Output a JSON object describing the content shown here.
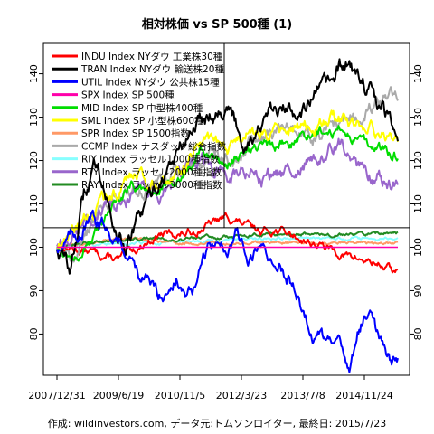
{
  "chart_data": {
    "type": "line",
    "title": "相対株価 vs SP 500種 (1)",
    "source_note": "作成: wildinvestors.com, データ元:トムソンロイター, 最終日: 2015/7/23",
    "x_tick_labels": [
      "2007/12/31",
      "2009/6/19",
      "2010/11/5",
      "2012/3/23",
      "2013/7/8",
      "2014/11/24"
    ],
    "y_ticks": [
      80,
      90,
      100,
      110,
      120,
      130,
      140
    ],
    "ylim": [
      70.5,
      147
    ],
    "grid": false,
    "legend_position": "top-left",
    "reference_lines": [
      {
        "orientation": "horizontal",
        "value": 104.5,
        "color": "#000000"
      },
      {
        "orientation": "vertical",
        "x_label_between": [
          "2010/11/5",
          "2012/3/23"
        ],
        "color": "#000000"
      }
    ],
    "series": [
      {
        "name": "INDU Index NYダウ 工業株30種",
        "color": "#ff0000",
        "key_values": {
          "start": 100,
          "mid": 103,
          "peak": 107,
          "end": 94
        }
      },
      {
        "name": "TRAN Index NYダウ 輸送株20種",
        "color": "#000000",
        "key_values": {
          "start": 100,
          "low": 95,
          "peak": 143,
          "end": 127
        }
      },
      {
        "name": "UTIL Index NYダウ 公共株15種",
        "color": "#0000ff",
        "key_values": {
          "start": 100,
          "low_2010": 88,
          "peak_2012": 105,
          "low": 73,
          "end": 75
        }
      },
      {
        "name": "SPX Index SP 500種",
        "color": "#ff00aa",
        "key_values": {
          "start": 100,
          "end": 100
        }
      },
      {
        "name": "MID Index SP 中型株400種",
        "color": "#00dd00",
        "key_values": {
          "start": 100,
          "peak": 128,
          "end": 121
        }
      },
      {
        "name": "SML Index SP 小型株600種",
        "color": "#ffff00",
        "key_values": {
          "start": 100,
          "peak": 130,
          "end": 123
        }
      },
      {
        "name": "SPR Index SP 1500指数",
        "color": "#ff9966",
        "key_values": {
          "start": 100,
          "end": 101
        }
      },
      {
        "name": "CCMP Index ナスダック総合指数",
        "color": "#aaaaaa",
        "key_values": {
          "start": 100,
          "peak": 136,
          "end": 135
        }
      },
      {
        "name": "RIY Index ラッセル1000種指数",
        "color": "#88ffff",
        "key_values": {
          "start": 100,
          "end": 102
        }
      },
      {
        "name": "RTY Index ラッセル2000種指数",
        "color": "#9966cc",
        "key_values": {
          "start": 100,
          "peak": 126,
          "end": 115
        }
      },
      {
        "name": "RAY Index ラッセル3000種指数",
        "color": "#228b22",
        "key_values": {
          "start": 100,
          "end": 103
        }
      }
    ]
  }
}
